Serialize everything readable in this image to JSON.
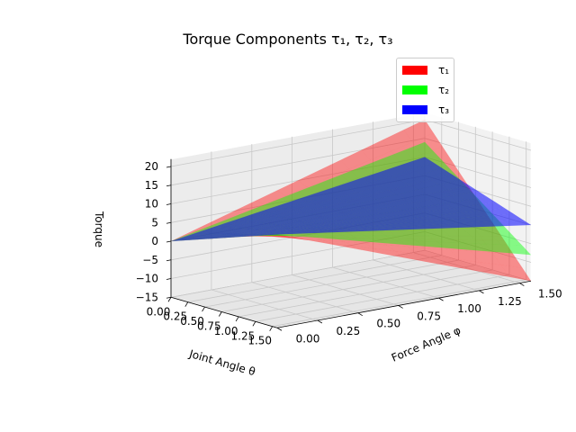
{
  "chart_data": {
    "type": "surface3d",
    "title": "Torque Components τ₁, τ₂, τ₃",
    "xlabel": "Joint Angle θ",
    "ylabel": "Force Angle φ",
    "zlabel": "Torque",
    "xlim": [
      0,
      1.5708
    ],
    "ylim": [
      0,
      1.5708
    ],
    "zlim": [
      -15,
      22
    ],
    "xticks": [
      "0.00",
      "0.25",
      "0.50",
      "0.75",
      "1.00",
      "1.25",
      "1.50"
    ],
    "yticks": [
      "0.00",
      "0.25",
      "0.50",
      "0.75",
      "1.00",
      "1.25",
      "1.50"
    ],
    "zticks": [
      "−15",
      "−10",
      "−5",
      "0",
      "5",
      "10",
      "15",
      "20"
    ],
    "grid": true,
    "legend_position": "top-right",
    "series": [
      {
        "name": "τ₁",
        "color": "#ff0000",
        "corners": {
          "theta0_phi0": 0,
          "theta0_phi1.57": 20,
          "theta1.57_phi0": 10,
          "theta1.57_phi1.57": -15
        }
      },
      {
        "name": "τ₂",
        "color": "#00ff00",
        "corners": {
          "theta0_phi0": 0,
          "theta0_phi1.57": 14,
          "theta1.57_phi0": 10,
          "theta1.57_phi1.57": -8
        }
      },
      {
        "name": "τ₃",
        "color": "#0000ff",
        "corners": {
          "theta0_phi0": 0,
          "theta0_phi1.57": 10,
          "theta1.57_phi0": 10,
          "theta1.57_phi1.57": 0
        }
      }
    ]
  }
}
